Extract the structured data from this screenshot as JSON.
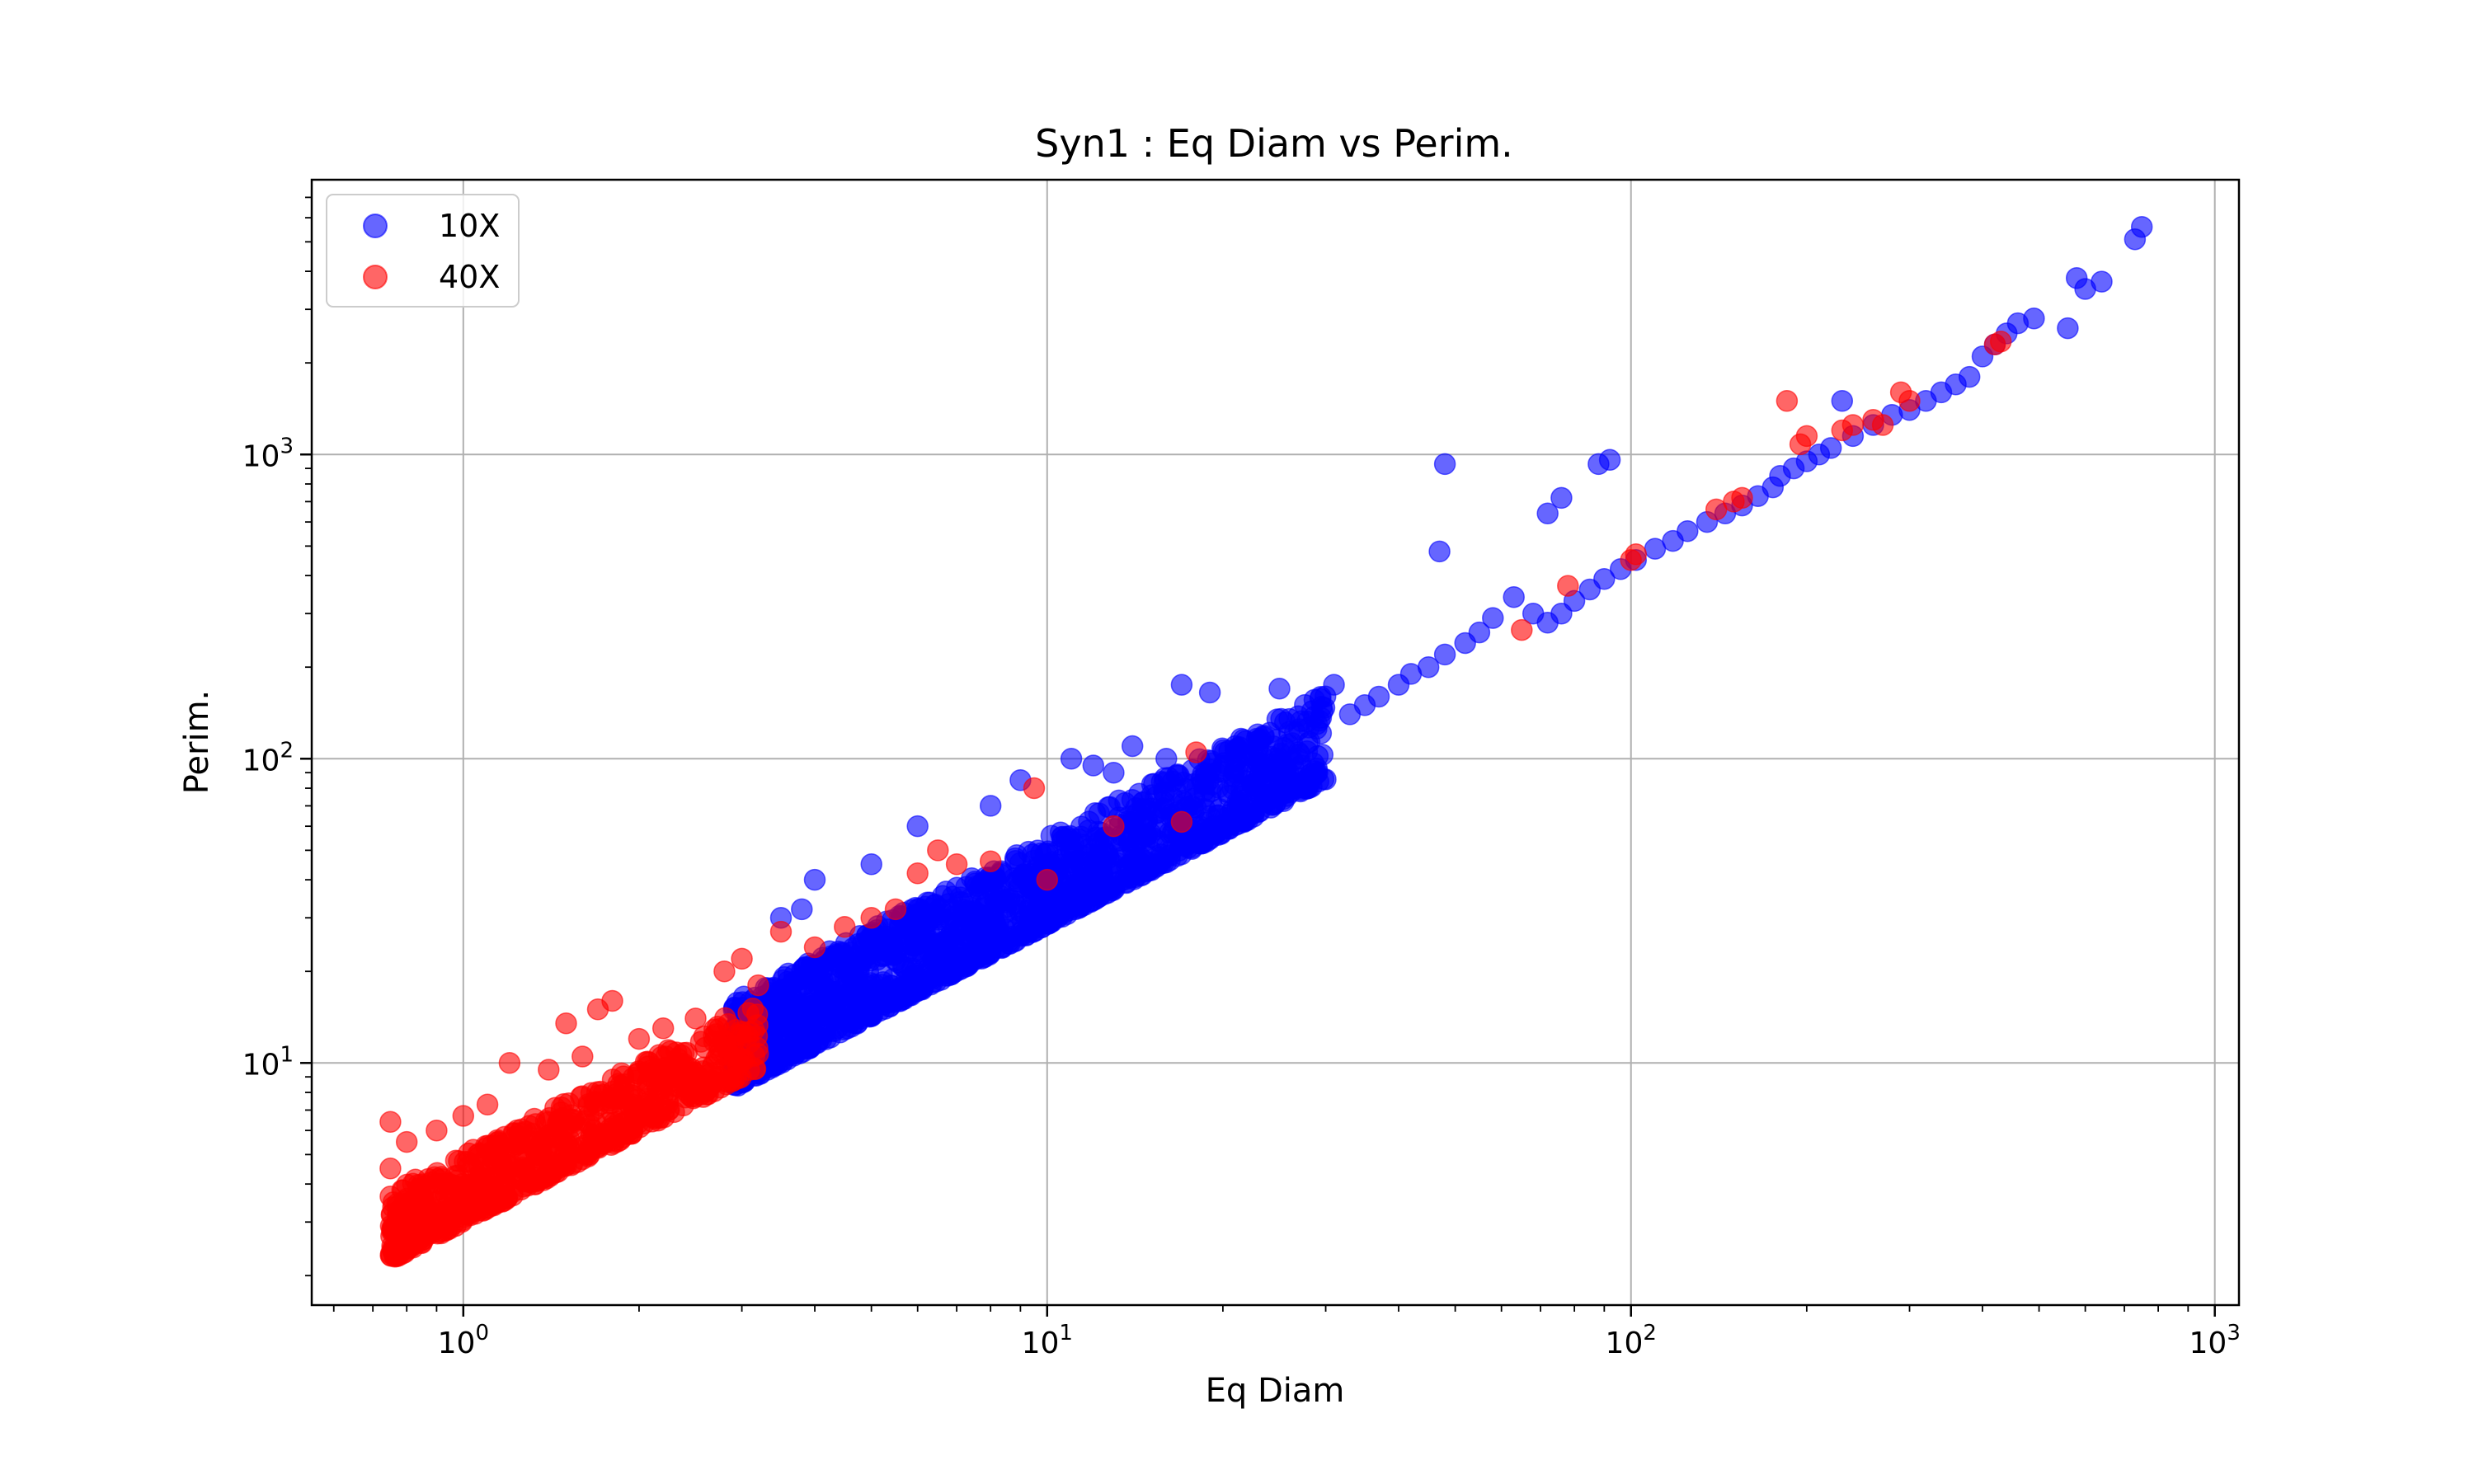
{
  "chart_data": {
    "type": "scatter",
    "title": "Syn1 : Eq Diam vs Perim.",
    "xlabel": "Eq Diam",
    "ylabel": "Perim.",
    "xscale": "log",
    "yscale": "log",
    "xlim": [
      0.55,
      1100
    ],
    "ylim": [
      1.6,
      8000
    ],
    "grid": true,
    "legend_position": "upper-left",
    "x_ticks": [
      {
        "base": "10",
        "exp": "0",
        "value": 1
      },
      {
        "base": "10",
        "exp": "1",
        "value": 10
      },
      {
        "base": "10",
        "exp": "2",
        "value": 100
      },
      {
        "base": "10",
        "exp": "3",
        "value": 1000
      }
    ],
    "y_ticks": [
      {
        "base": "10",
        "exp": "1",
        "value": 10
      },
      {
        "base": "10",
        "exp": "2",
        "value": 100
      },
      {
        "base": "10",
        "exp": "3",
        "value": 1000
      }
    ],
    "series": [
      {
        "name": "10X",
        "color": "#0000ff",
        "band": {
          "x_min": 2.9,
          "x_max": 30,
          "slope": 1.0,
          "k_low": 2.85,
          "k_high": 5.5,
          "count": 1500
        },
        "points": [
          [
            48,
            930
          ],
          [
            47,
            480
          ],
          [
            88,
            930
          ],
          [
            92,
            960
          ],
          [
            72,
            640
          ],
          [
            76,
            720
          ],
          [
            750,
            5600
          ],
          [
            730,
            5100
          ],
          [
            640,
            3700
          ],
          [
            600,
            3500
          ],
          [
            580,
            3800
          ],
          [
            560,
            2600
          ],
          [
            490,
            2800
          ],
          [
            460,
            2700
          ],
          [
            440,
            2500
          ],
          [
            420,
            2300
          ],
          [
            400,
            2100
          ],
          [
            380,
            1800
          ],
          [
            360,
            1700
          ],
          [
            340,
            1600
          ],
          [
            320,
            1500
          ],
          [
            300,
            1400
          ],
          [
            280,
            1350
          ],
          [
            260,
            1250
          ],
          [
            240,
            1150
          ],
          [
            230,
            1500
          ],
          [
            220,
            1050
          ],
          [
            210,
            1000
          ],
          [
            200,
            950
          ],
          [
            190,
            900
          ],
          [
            180,
            850
          ],
          [
            175,
            780
          ],
          [
            165,
            730
          ],
          [
            155,
            680
          ],
          [
            145,
            640
          ],
          [
            135,
            600
          ],
          [
            125,
            560
          ],
          [
            118,
            520
          ],
          [
            110,
            490
          ],
          [
            102,
            450
          ],
          [
            96,
            420
          ],
          [
            90,
            390
          ],
          [
            85,
            360
          ],
          [
            80,
            330
          ],
          [
            76,
            300
          ],
          [
            72,
            280
          ],
          [
            68,
            300
          ],
          [
            63,
            340
          ],
          [
            58,
            290
          ],
          [
            55,
            260
          ],
          [
            52,
            240
          ],
          [
            48,
            220
          ],
          [
            45,
            200
          ],
          [
            42,
            190
          ],
          [
            40,
            175
          ],
          [
            37,
            160
          ],
          [
            35,
            150
          ],
          [
            33,
            140
          ],
          [
            31,
            175
          ],
          [
            29,
            130
          ],
          [
            27,
            125
          ],
          [
            25,
            170
          ],
          [
            23,
            115
          ],
          [
            21,
            110
          ],
          [
            19,
            165
          ],
          [
            17,
            175
          ],
          [
            16,
            100
          ],
          [
            14,
            110
          ],
          [
            13,
            90
          ],
          [
            12,
            95
          ],
          [
            11,
            100
          ],
          [
            9,
            85
          ],
          [
            8,
            70
          ],
          [
            6,
            60
          ],
          [
            5,
            45
          ],
          [
            4,
            40
          ],
          [
            3.8,
            32
          ],
          [
            3.5,
            30
          ]
        ]
      },
      {
        "name": "40X",
        "color": "#ff0000",
        "band": {
          "x_min": 0.75,
          "x_max": 3.2,
          "slope": 1.0,
          "k_low": 3.0,
          "k_high": 5.0,
          "count": 700
        },
        "points": [
          [
            0.75,
            6.4
          ],
          [
            0.75,
            4.5
          ],
          [
            0.8,
            5.5
          ],
          [
            0.9,
            6.0
          ],
          [
            1.0,
            6.7
          ],
          [
            1.1,
            7.3
          ],
          [
            1.2,
            10.0
          ],
          [
            1.4,
            9.5
          ],
          [
            1.5,
            13.5
          ],
          [
            1.6,
            10.5
          ],
          [
            1.7,
            15.0
          ],
          [
            1.8,
            16.0
          ],
          [
            2.0,
            12.0
          ],
          [
            2.2,
            13.0
          ],
          [
            2.5,
            14.0
          ],
          [
            2.8,
            20.0
          ],
          [
            3.0,
            22.0
          ],
          [
            3.2,
            18.0
          ],
          [
            3.5,
            27.0
          ],
          [
            4.0,
            24.0
          ],
          [
            4.5,
            28.0
          ],
          [
            5.0,
            30.0
          ],
          [
            5.5,
            32.0
          ],
          [
            6.0,
            42.0
          ],
          [
            6.5,
            50.0
          ],
          [
            7.0,
            45.0
          ],
          [
            8.0,
            46.0
          ],
          [
            9.5,
            80.0
          ],
          [
            10.0,
            40.0
          ],
          [
            13.0,
            60.0
          ],
          [
            17.0,
            62.0
          ],
          [
            18.0,
            105.0
          ],
          [
            65.0,
            265.0
          ],
          [
            78.0,
            370.0
          ],
          [
            100.0,
            450.0
          ],
          [
            102.0,
            470.0
          ],
          [
            140.0,
            660.0
          ],
          [
            150.0,
            700.0
          ],
          [
            155.0,
            720.0
          ],
          [
            185.0,
            1500.0
          ],
          [
            195.0,
            1080.0
          ],
          [
            200.0,
            1150.0
          ],
          [
            230.0,
            1200.0
          ],
          [
            240.0,
            1250.0
          ],
          [
            260.0,
            1300.0
          ],
          [
            270.0,
            1250.0
          ],
          [
            290.0,
            1600.0
          ],
          [
            300.0,
            1500.0
          ],
          [
            420.0,
            2300.0
          ],
          [
            430.0,
            2350.0
          ]
        ]
      }
    ]
  }
}
